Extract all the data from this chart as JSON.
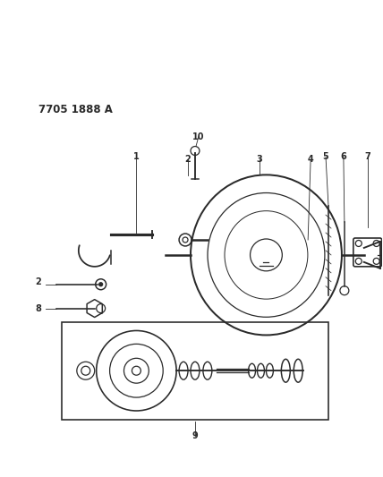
{
  "title_text": "7705 1888 A",
  "title_fontsize": 8.5,
  "title_fontweight": "bold",
  "bg_color": "#ffffff",
  "line_color": "#2a2a2a",
  "figsize": [
    4.28,
    5.33
  ],
  "dpi": 100
}
